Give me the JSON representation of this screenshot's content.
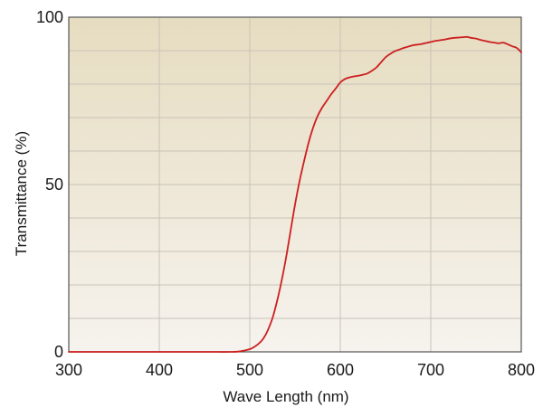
{
  "chart_data": {
    "type": "line",
    "title": "",
    "xlabel": "Wave Length (nm)",
    "ylabel": "Transmittance (%)",
    "xlim": [
      300,
      800
    ],
    "ylim": [
      0,
      100
    ],
    "x_ticks": [
      "300",
      "400",
      "500",
      "600",
      "700",
      "800"
    ],
    "y_ticks": [
      "0",
      "50",
      "100"
    ],
    "grid": true,
    "legend": "none",
    "colors": {
      "line": "#cc1f1f",
      "background_top": "#e6dcc0",
      "background_bottom": "#f6f3ee",
      "grid": "#c9c3b6",
      "axis": "#555555"
    },
    "series": [
      {
        "x": [
          300,
          350,
          400,
          450,
          480,
          490,
          500,
          505,
          510,
          515,
          520,
          525,
          530,
          535,
          540,
          545,
          550,
          555,
          560,
          565,
          570,
          575,
          580,
          585,
          590,
          595,
          600,
          605,
          610,
          615,
          620,
          625,
          630,
          635,
          640,
          645,
          650,
          655,
          660,
          665,
          670,
          675,
          680,
          685,
          690,
          695,
          700,
          705,
          710,
          715,
          720,
          725,
          730,
          735,
          740,
          745,
          750,
          755,
          760,
          765,
          770,
          775,
          780,
          785,
          790,
          795,
          800
        ],
        "y": [
          0,
          0,
          0,
          0,
          0,
          0.2,
          0.8,
          1.5,
          2.5,
          4,
          6.5,
          10,
          15,
          21,
          28,
          36,
          44,
          51,
          57,
          62.5,
          67,
          70.5,
          73,
          75,
          77,
          78.7,
          80.5,
          81.5,
          82,
          82.3,
          82.5,
          82.8,
          83.2,
          84,
          85,
          86.5,
          88,
          89,
          89.8,
          90.3,
          90.8,
          91.2,
          91.6,
          91.8,
          92,
          92.3,
          92.6,
          92.9,
          93.1,
          93.3,
          93.6,
          93.8,
          93.9,
          94,
          94.1,
          93.8,
          93.6,
          93.2,
          92.9,
          92.6,
          92.4,
          92.2,
          92.4,
          91.9,
          91.3,
          90.8,
          89.5
        ]
      }
    ]
  }
}
